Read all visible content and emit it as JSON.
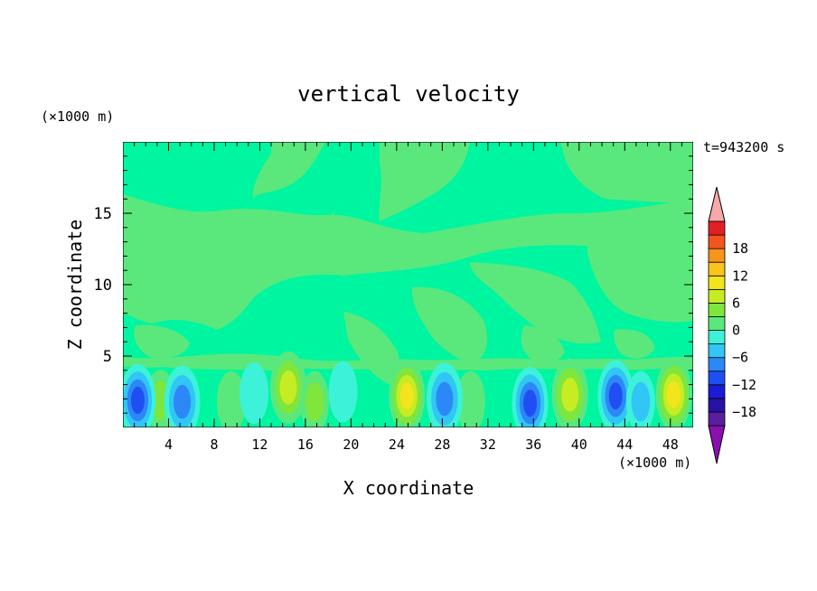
{
  "chart_data": {
    "type": "heatmap",
    "title": "vertical velocity",
    "xlabel": "X coordinate",
    "ylabel": "Z coordinate",
    "x_unit": "(×1000 m)",
    "y_unit": "(×1000 m)",
    "time_label": "t=943200 s",
    "xlim": [
      0,
      50
    ],
    "ylim": [
      0,
      20
    ],
    "x_ticks": [
      4,
      8,
      12,
      16,
      20,
      24,
      28,
      32,
      36,
      40,
      44,
      48
    ],
    "y_ticks": [
      5,
      10,
      15
    ],
    "colorbar": {
      "levels": [
        -21,
        -18,
        -15,
        -12,
        -9,
        -6,
        -3,
        0,
        3,
        6,
        9,
        12,
        15,
        18,
        21
      ],
      "labels": [
        -18,
        -12,
        -6,
        0,
        6,
        12,
        18
      ],
      "colors": [
        "#5a1ea0",
        "#2812a6",
        "#1b1bd6",
        "#1f4ff2",
        "#2b88f6",
        "#30c6f5",
        "#3cf2d8",
        "#5ae87c",
        "#7ee63c",
        "#c6ec23",
        "#f2e51c",
        "#fac518",
        "#f7941a",
        "#f2561d",
        "#e22024"
      ],
      "under_color": "#8b0fae",
      "over_color": "#f7a8a8"
    },
    "background_level": "#00f5a0",
    "features": [
      {
        "kind": "updraft",
        "x": 14.5,
        "z": 2.8,
        "value": 9
      },
      {
        "kind": "updraft",
        "x": 16.8,
        "z": 1.8,
        "value": 6
      },
      {
        "kind": "updraft",
        "x": 24.9,
        "z": 2.2,
        "value": 12
      },
      {
        "kind": "updraft",
        "x": 39.2,
        "z": 2.3,
        "value": 9
      },
      {
        "kind": "updraft",
        "x": 48.3,
        "z": 2.3,
        "value": 12
      },
      {
        "kind": "updraft",
        "x": 3.3,
        "z": 1.9,
        "value": 6
      },
      {
        "kind": "updraft",
        "x": 9.5,
        "z": 1.8,
        "value": 3
      },
      {
        "kind": "updraft",
        "x": 30.5,
        "z": 1.8,
        "value": 3
      },
      {
        "kind": "downdraft",
        "x": 1.3,
        "z": 1.9,
        "value": -12
      },
      {
        "kind": "downdraft",
        "x": 5.2,
        "z": 1.8,
        "value": -9
      },
      {
        "kind": "downdraft",
        "x": 28.2,
        "z": 2.0,
        "value": -9
      },
      {
        "kind": "downdraft",
        "x": 35.7,
        "z": 1.7,
        "value": -12
      },
      {
        "kind": "downdraft",
        "x": 43.2,
        "z": 2.2,
        "value": -12
      },
      {
        "kind": "downdraft",
        "x": 45.4,
        "z": 1.8,
        "value": -6
      },
      {
        "kind": "downdraft",
        "x": 19.3,
        "z": 2.5,
        "value": -3
      },
      {
        "kind": "downdraft",
        "x": 11.5,
        "z": 2.4,
        "value": -3
      }
    ]
  }
}
